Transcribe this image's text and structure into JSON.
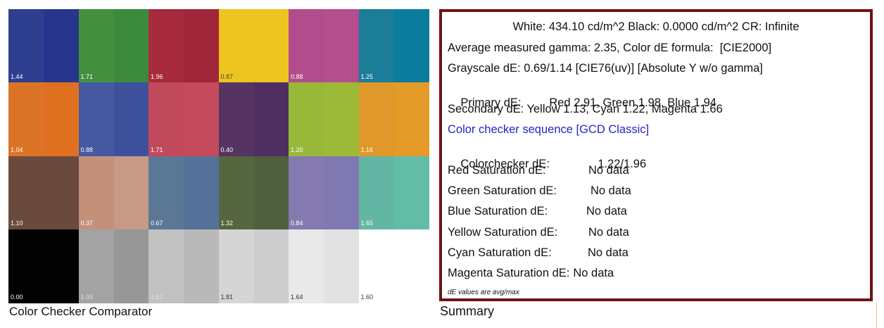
{
  "chart_data": {
    "type": "heatmap",
    "title": "Color Checker Comparator",
    "rows": 4,
    "cols": 6,
    "patches": [
      {
        "value": "1.44",
        "left": "#2f3f8f",
        "right": "#27368c",
        "label_color": "#ffffff"
      },
      {
        "value": "1.71",
        "left": "#45903f",
        "right": "#3c8a3c",
        "label_color": "#ffffff"
      },
      {
        "value": "1.96",
        "left": "#a82a3d",
        "right": "#a0263a",
        "label_color": "#ffffff"
      },
      {
        "value": "0.87",
        "left": "#eec41e",
        "right": "#eec421",
        "label_color": "#444444"
      },
      {
        "value": "0.88",
        "left": "#b34c8c",
        "right": "#b44e8d",
        "label_color": "#ffffff"
      },
      {
        "value": "1.25",
        "left": "#1b7d98",
        "right": "#0b7c9e",
        "label_color": "#ffffff"
      },
      {
        "value": "1.04",
        "left": "#dc7428",
        "right": "#df7020",
        "label_color": "#ffffff"
      },
      {
        "value": "0.88",
        "left": "#4558a0",
        "right": "#3e509c",
        "label_color": "#ffffff"
      },
      {
        "value": "1.71",
        "left": "#c04a5c",
        "right": "#c44a5c",
        "label_color": "#ffffff"
      },
      {
        "value": "0.40",
        "left": "#553462",
        "right": "#4f2f60",
        "label_color": "#ffffff"
      },
      {
        "value": "1.20",
        "left": "#98b83a",
        "right": "#9cba38",
        "label_color": "#ffffff"
      },
      {
        "value": "1.16",
        "left": "#e1982a",
        "right": "#e49a26",
        "label_color": "#ffffff"
      },
      {
        "value": "1.10",
        "left": "#6b4a3e",
        "right": "#6a4a3e",
        "label_color": "#ffffff"
      },
      {
        "value": "0.37",
        "left": "#c4907a",
        "right": "#c79a86",
        "label_color": "#ffffff"
      },
      {
        "value": "0.67",
        "left": "#5b7796",
        "right": "#54719a",
        "label_color": "#ffffff"
      },
      {
        "value": "1.32",
        "left": "#56663e",
        "right": "#50603e",
        "label_color": "#ffffff"
      },
      {
        "value": "0.84",
        "left": "#847ab0",
        "right": "#8078b0",
        "label_color": "#ffffff"
      },
      {
        "value": "1.65",
        "left": "#64b6a4",
        "right": "#62bca6",
        "label_color": "#ffffff"
      },
      {
        "value": "0.00",
        "left": "#020202",
        "right": "#020202",
        "label_color": "#ffffff"
      },
      {
        "value": "1.93",
        "left": "#a3a3a3",
        "right": "#979797",
        "label_color": "#dddddd"
      },
      {
        "value": "1.87",
        "left": "#c1c1c1",
        "right": "#b9b9b9",
        "label_color": "#dddddd"
      },
      {
        "value": "1.81",
        "left": "#d5d5d5",
        "right": "#cdcdcd",
        "label_color": "#333333"
      },
      {
        "value": "1.64",
        "left": "#e9e9e9",
        "right": "#e2e2e2",
        "label_color": "#333333"
      },
      {
        "value": "1.60",
        "left": "#ffffff",
        "right": "#ffffff",
        "label_color": "#333333"
      }
    ]
  },
  "summary": {
    "caption": "Summary",
    "white_line": "White: 434.10 cd/m^2 Black: 0.0000 cd/m^2 CR: Infinite",
    "gamma_line": "Average measured gamma: 2.35, Color dE formula:  [CIE2000]",
    "grayscale_line": "Grayscale dE: 0.69/1.14 [CIE76(uv)] [Absolute Y w/o gamma]",
    "primary_label": "Primary dE:",
    "primary_values": "Red 2.91, Green 1.98, Blue 1.94",
    "secondary_line": "Secondary dE: Yellow 1.13, Cyan 1.22, Magenta 1.66",
    "sequence_link": "Color checker sequence [GCD Classic]",
    "colorchecker_label": "Colorchecker dE:",
    "colorchecker_value": "1.22/1.96",
    "saturation": [
      {
        "label": "Red Saturation dE:",
        "value": "No data"
      },
      {
        "label": "Green Saturation dE:",
        "value": "No data"
      },
      {
        "label": "Blue Saturation dE:",
        "value": "No data"
      },
      {
        "label": "Yellow Saturation dE:",
        "value": "No data"
      },
      {
        "label": "Cyan Saturation dE:",
        "value": "No data"
      },
      {
        "label": "Magenta Saturation dE:",
        "value": "No data"
      }
    ],
    "footnote": "dE values are avg/max"
  },
  "colors": {
    "summary_border": "#6e1414",
    "link": "#2424c8"
  }
}
